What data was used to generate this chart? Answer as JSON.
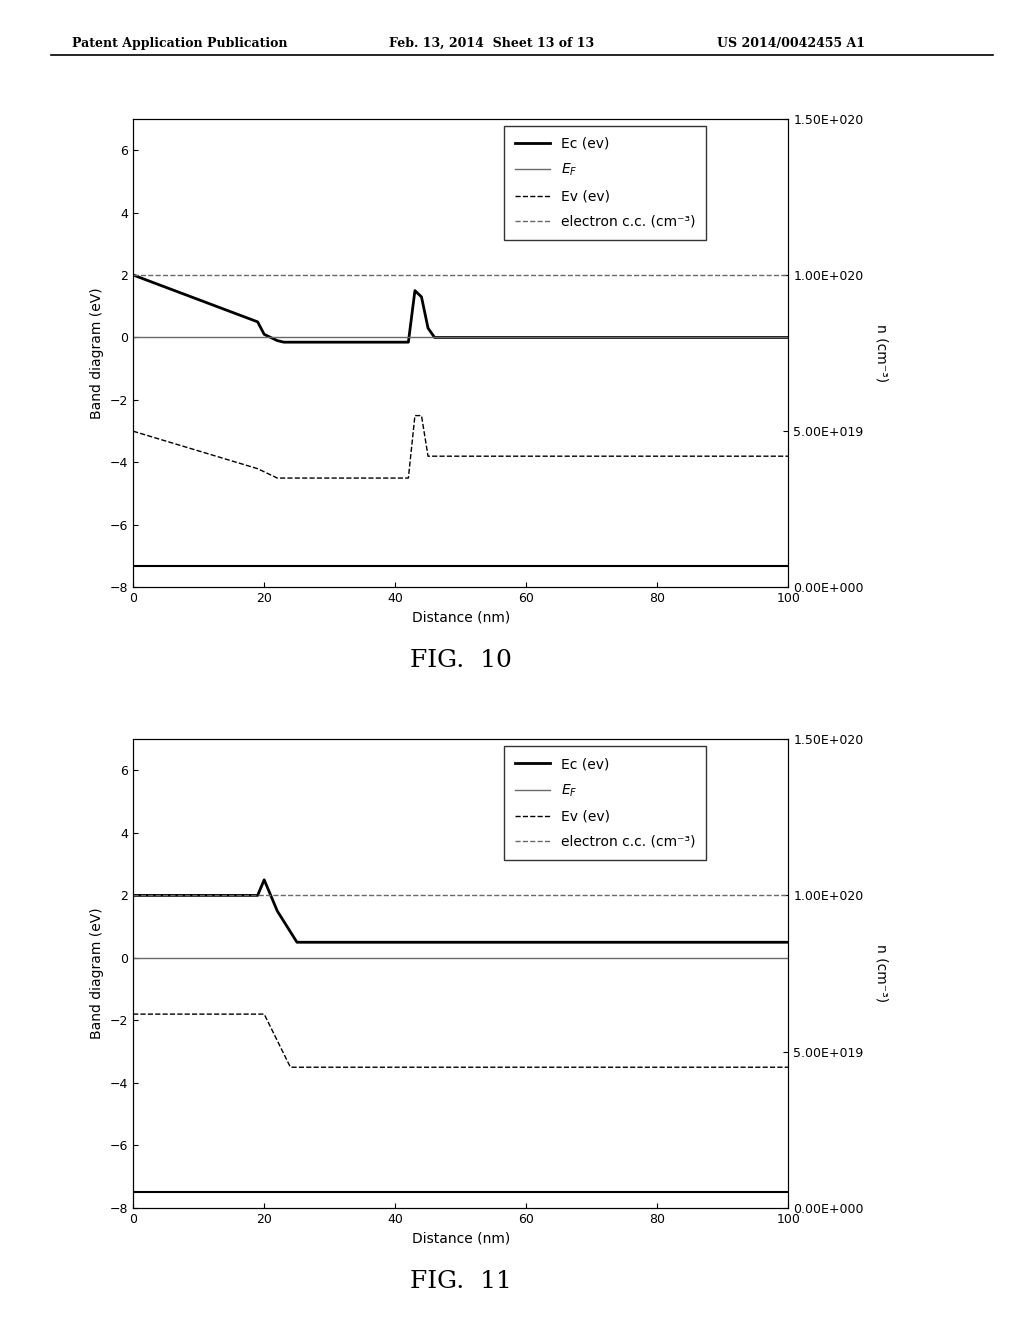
{
  "header_left": "Patent Application Publication",
  "header_mid": "Feb. 13, 2014  Sheet 13 of 13",
  "header_right": "US 2014/0042455 A1",
  "fig10_caption": "FIG.  10",
  "fig11_caption": "FIG.  11",
  "fig10": {
    "Ec": {
      "x": [
        0,
        19,
        20,
        22,
        23,
        40,
        42,
        43,
        44,
        45,
        46,
        47,
        48,
        50,
        100
      ],
      "y": [
        2.0,
        0.5,
        0.1,
        -0.1,
        -0.15,
        -0.15,
        -0.15,
        1.5,
        1.3,
        0.3,
        0.0,
        0.0,
        0.0,
        0.0,
        0.0
      ]
    },
    "EF": {
      "x": [
        0,
        100
      ],
      "y": [
        0.0,
        0.0
      ]
    },
    "Ev": {
      "x": [
        0,
        19,
        20,
        21,
        22,
        40,
        42,
        43,
        44,
        45,
        46,
        50,
        100
      ],
      "y": [
        -3.0,
        -4.2,
        -4.3,
        -4.4,
        -4.5,
        -4.5,
        -4.5,
        -2.5,
        -2.5,
        -3.8,
        -3.8,
        -3.8,
        -3.8
      ]
    },
    "Ec_flat": {
      "x": [
        0,
        22,
        22,
        48,
        48,
        100
      ],
      "y": [
        -7.3,
        -7.3,
        -7.3,
        -7.3,
        -7.3,
        -7.3
      ]
    },
    "ecc": {
      "x": [
        0,
        100
      ],
      "y": [
        1e+20,
        1e+20
      ]
    },
    "xlim": [
      0,
      100
    ],
    "ylim_left": [
      -8,
      7
    ],
    "ylim_right": [
      0,
      1.5e+20
    ],
    "yticks_left": [
      -8,
      -6,
      -4,
      -2,
      0,
      2,
      4,
      6
    ],
    "yticks_right": [
      0,
      5e+19,
      1e+20,
      1.5e+20
    ],
    "ytick_labels_right": [
      "0.00E+000",
      "5.00E+019",
      "1.00E+020",
      "1.50E+020"
    ],
    "xticks": [
      0,
      20,
      40,
      60,
      80,
      100
    ],
    "xlabel": "Distance (nm)",
    "ylabel_left": "Band diagram (eV)",
    "ylabel_right": "n (cm⁻³)"
  },
  "fig11": {
    "Ec": {
      "x": [
        0,
        19,
        20,
        22,
        25,
        100
      ],
      "y": [
        2.0,
        2.0,
        2.5,
        1.5,
        0.5,
        0.5
      ]
    },
    "EF": {
      "x": [
        0,
        100
      ],
      "y": [
        0.0,
        0.0
      ]
    },
    "Ev": {
      "x": [
        0,
        20,
        24,
        27,
        100
      ],
      "y": [
        -1.8,
        -1.8,
        -3.5,
        -3.5,
        -3.5
      ]
    },
    "Ec_flat": {
      "x": [
        0,
        100
      ],
      "y": [
        -7.5,
        -7.5
      ]
    },
    "ecc": {
      "x": [
        0,
        100
      ],
      "y": [
        1e+20,
        1e+20
      ]
    },
    "xlim": [
      0,
      100
    ],
    "ylim_left": [
      -8,
      7
    ],
    "ylim_right": [
      0,
      1.5e+20
    ],
    "yticks_left": [
      -8,
      -6,
      -4,
      -2,
      0,
      2,
      4,
      6
    ],
    "yticks_right": [
      0,
      5e+19,
      1e+20,
      1.5e+20
    ],
    "ytick_labels_right": [
      "0.00E+000",
      "5.00E+019",
      "1.00E+020",
      "1.50E+020"
    ],
    "xticks": [
      0,
      20,
      40,
      60,
      80,
      100
    ],
    "xlabel": "Distance (nm)",
    "ylabel_left": "Band diagram (eV)",
    "ylabel_right": "n (cm⁻³)"
  },
  "legend_entries": [
    {
      "label": "Ec (ev)",
      "linestyle": "-",
      "color": "black",
      "linewidth": 2.0
    },
    {
      "label": "$E_F$",
      "linestyle": "-",
      "color": "dimgray",
      "linewidth": 1.0
    },
    {
      "label": "Ev (ev)",
      "linestyle": "--",
      "color": "black",
      "linewidth": 1.0
    },
    {
      "label": "electron c.c. (cm⁻³)",
      "linestyle": "--",
      "color": "dimgray",
      "linewidth": 1.0
    }
  ],
  "background_color": "#ffffff",
  "font_size": 10,
  "caption_font_size": 18
}
